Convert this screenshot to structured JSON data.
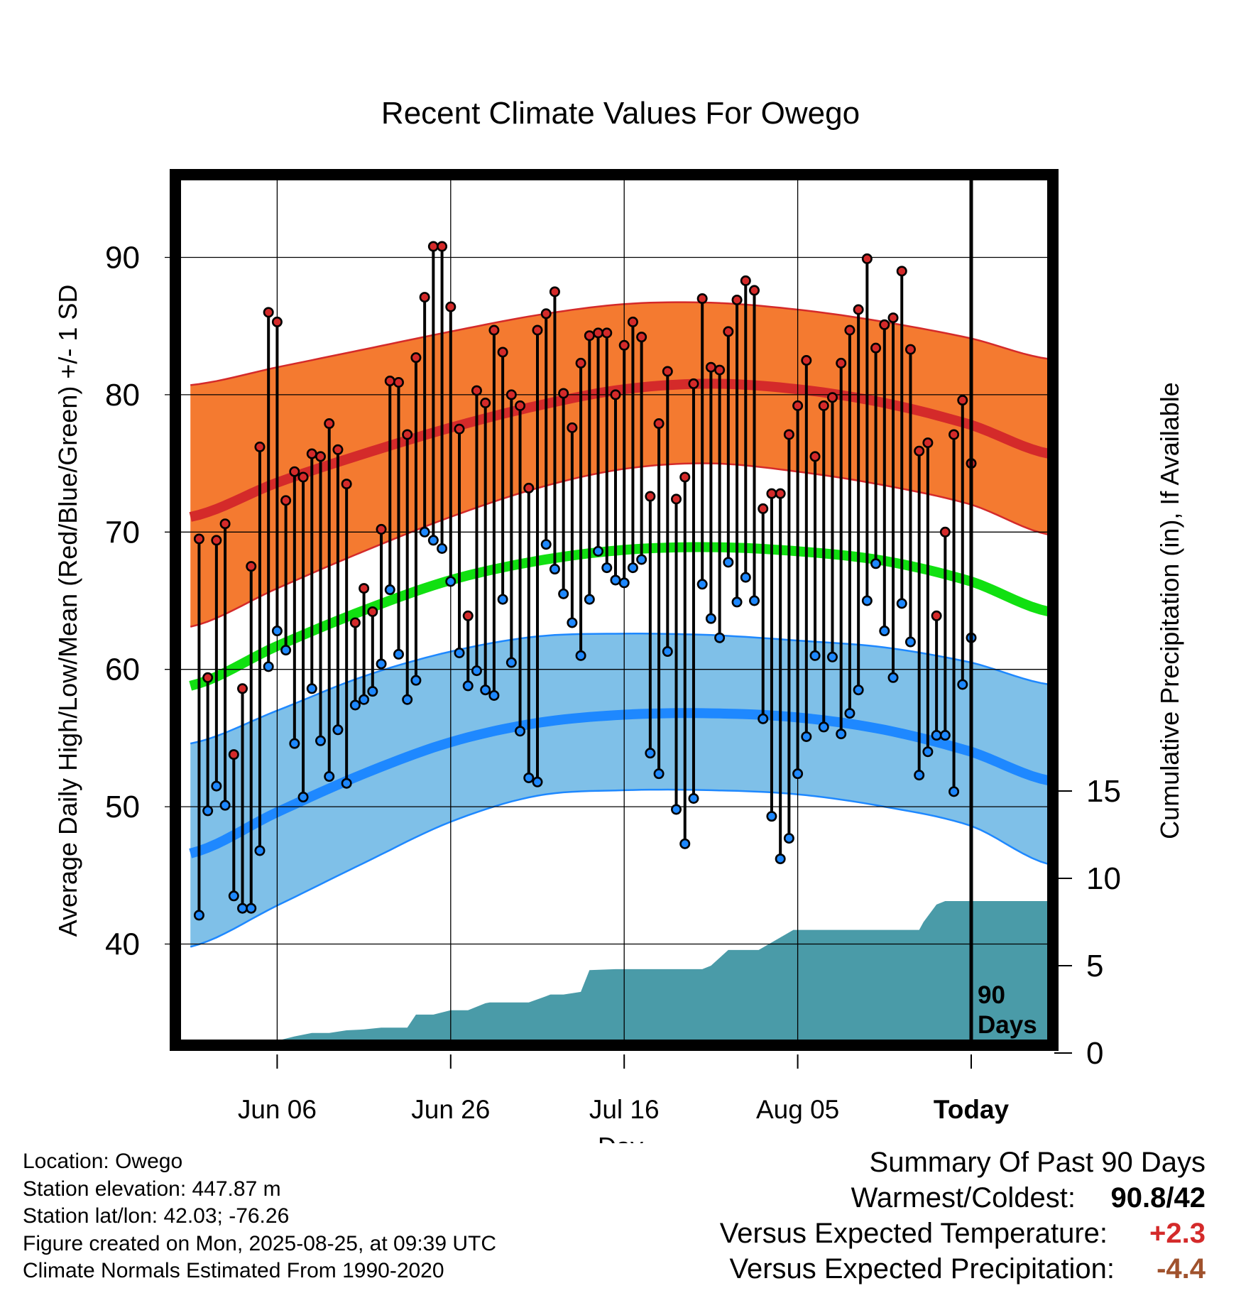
{
  "chart_data": {
    "type": "line",
    "title": "Recent Climate Values For Owego",
    "xlabel": "Day",
    "ylabel": "Average Daily High/Low/Mean (Red/Blue/Green) +/- 1 SD",
    "y2label": "Cumulative Precipitation (in), If Available",
    "x_tick_labels": [
      "Jun 06",
      "Jun 26",
      "Jul 16",
      "Aug 05",
      "Today"
    ],
    "y_ticks": [
      40,
      50,
      60,
      70,
      80,
      90
    ],
    "y2_ticks": [
      0,
      5,
      10,
      15
    ],
    "ylim": [
      32.5,
      97.5
    ],
    "y2lim": [
      0,
      15
    ],
    "x_range_days": [
      -90,
      9
    ],
    "period_label": "90 Days",
    "colors": {
      "high": "#d42a2a",
      "high_band": "#f47a30",
      "low": "#1e88ff",
      "low_band": "#7fc0e8",
      "mean": "#11e011",
      "precip": "#4a9ba8"
    },
    "normals": {
      "days": [
        -90,
        -80,
        -70,
        -60,
        -50,
        -40,
        -30,
        -20,
        -10,
        0,
        9
      ],
      "high_mean": [
        71.1,
        73.6,
        75.7,
        77.6,
        79.2,
        80.4,
        80.8,
        80.4,
        79.4,
        77.8,
        75.7
      ],
      "high_upper": [
        80.7,
        82.0,
        83.3,
        84.6,
        85.8,
        86.6,
        86.7,
        86.2,
        85.3,
        84.1,
        82.6
      ],
      "high_lower": [
        63.1,
        65.9,
        68.6,
        71.1,
        73.2,
        74.6,
        75.0,
        74.4,
        73.4,
        72.0,
        69.8
      ],
      "mean": [
        58.8,
        61.7,
        64.3,
        66.5,
        67.9,
        68.7,
        68.9,
        68.6,
        67.9,
        66.4,
        64.2
      ],
      "low_mean": [
        46.6,
        49.6,
        52.4,
        54.7,
        56.1,
        56.7,
        56.8,
        56.5,
        55.6,
        54.0,
        51.9
      ],
      "low_upper": [
        54.6,
        57.0,
        59.5,
        61.3,
        62.4,
        62.6,
        62.5,
        62.1,
        61.6,
        60.5,
        58.9
      ],
      "low_lower": [
        39.8,
        42.8,
        45.9,
        48.9,
        50.8,
        51.2,
        51.2,
        50.9,
        50.0,
        48.6,
        45.8
      ]
    },
    "daily_highs": [
      69.5,
      59.4,
      69.4,
      70.6,
      53.8,
      58.6,
      67.5,
      76.2,
      86.0,
      85.3,
      72.3,
      74.4,
      74.0,
      75.7,
      75.5,
      77.9,
      76.0,
      73.5,
      63.4,
      65.9,
      64.2,
      70.2,
      81.0,
      80.9,
      77.1,
      82.7,
      87.1,
      90.8,
      90.8,
      86.4,
      77.5,
      63.9,
      80.3,
      79.4,
      84.7,
      83.1,
      80.0,
      79.2,
      73.2,
      84.7,
      85.9,
      87.5,
      80.1,
      77.6,
      82.3,
      84.3,
      84.5,
      84.5,
      80.0,
      83.6,
      85.3,
      84.2,
      72.6,
      77.9,
      81.7,
      72.4,
      74.0,
      80.8,
      87.0,
      82.0,
      81.8,
      84.6,
      86.9,
      88.3,
      87.6,
      71.7,
      72.8,
      72.8,
      77.1,
      79.2,
      82.5,
      75.5,
      79.2,
      79.8,
      82.3,
      84.7,
      86.2,
      89.9,
      83.4,
      85.1,
      85.6,
      89.0,
      83.3,
      75.9,
      76.5,
      63.9,
      70.0,
      77.1,
      79.6,
      75.0
    ],
    "daily_lows": [
      42.1,
      49.7,
      51.5,
      50.1,
      43.5,
      42.6,
      42.6,
      46.8,
      60.2,
      62.8,
      61.4,
      54.6,
      50.7,
      58.6,
      54.8,
      52.2,
      55.6,
      51.7,
      57.4,
      57.8,
      58.4,
      60.4,
      65.8,
      61.1,
      57.8,
      59.2,
      70.0,
      69.4,
      68.8,
      66.4,
      61.2,
      58.8,
      59.9,
      58.5,
      58.1,
      65.1,
      60.5,
      55.5,
      52.1,
      51.8,
      69.1,
      67.3,
      65.5,
      63.4,
      61.0,
      65.1,
      68.6,
      67.4,
      66.5,
      66.3,
      67.4,
      68.0,
      53.9,
      52.4,
      61.3,
      49.8,
      47.3,
      50.6,
      66.2,
      63.7,
      62.3,
      67.8,
      64.9,
      66.7,
      65.0,
      56.4,
      49.3,
      46.2,
      47.7,
      52.4,
      55.1,
      61.0,
      55.8,
      60.9,
      55.3,
      56.8,
      58.5,
      65.0,
      67.7,
      62.8,
      59.4,
      64.8,
      62.0,
      52.3,
      54.0,
      55.2,
      55.2,
      51.1,
      58.9,
      62.3
    ],
    "cumulative_precip": {
      "days": [
        -90,
        -87,
        -86.5,
        -82,
        -81,
        -80,
        -78,
        -76,
        -74,
        -72,
        -70,
        -68,
        -67.5,
        -65,
        -64,
        -62,
        -60,
        -58,
        -56,
        -55.5,
        -54,
        -51,
        -49,
        -48.5,
        -47,
        -45,
        -44,
        -41,
        -40,
        -38,
        -37,
        -36.5,
        -31,
        -30,
        -28,
        -27,
        -25,
        -24.5,
        -20.5,
        -19.5,
        -6,
        -5.5,
        -4,
        -3,
        9
      ],
      "values": [
        0,
        0,
        0.2,
        0.2,
        0.3,
        0.7,
        0.95,
        1.15,
        1.15,
        1.3,
        1.35,
        1.45,
        1.45,
        1.45,
        2.2,
        2.2,
        2.45,
        2.45,
        2.85,
        2.9,
        2.9,
        2.9,
        3.25,
        3.35,
        3.35,
        3.5,
        4.75,
        4.8,
        4.8,
        4.8,
        4.8,
        4.8,
        4.8,
        5.0,
        5.9,
        5.9,
        5.9,
        5.9,
        7.05,
        7.05,
        7.05,
        7.5,
        8.5,
        8.7,
        8.7
      ]
    }
  },
  "footer": {
    "location": "Location: Owego",
    "elevation": "Station elevation: 447.87 m",
    "latlon": "Station lat/lon: 42.03; -76.26",
    "created": "Figure created on Mon, 2025-08-25, at 09:39 UTC",
    "normals": "Climate Normals Estimated From 1990-2020"
  },
  "summary": {
    "title": "Summary Of Past 90 Days",
    "warmest_coldest_label": "Warmest/Coldest:",
    "warmest_coldest_value": "90.8/42",
    "temp_label": "Versus Expected Temperature:",
    "temp_value": "+2.3",
    "precip_label": "Versus Expected Precipitation:",
    "precip_value": "-4.4"
  }
}
